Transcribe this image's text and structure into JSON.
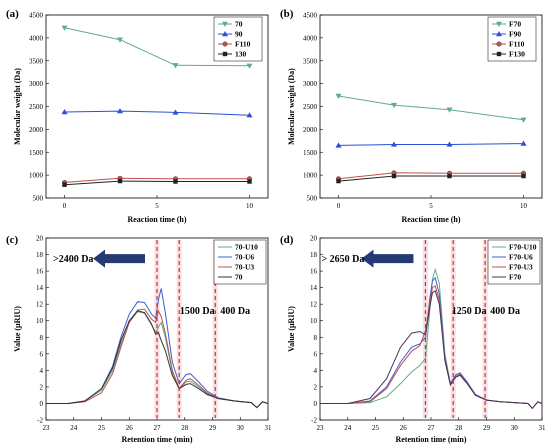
{
  "chart_data": [
    {
      "id": "a",
      "panel_label": "(a)",
      "type": "line",
      "xlabel": "Reaction time (h)",
      "ylabel": "Molecular weight (Da)",
      "xlim": [
        -1,
        11
      ],
      "ylim": [
        500,
        4500
      ],
      "xticks": [
        0,
        5,
        10
      ],
      "yticks": [
        500,
        1000,
        1500,
        2000,
        2500,
        3000,
        3500,
        4000,
        4500
      ],
      "legend_position": "top-right",
      "x": [
        0,
        3,
        6,
        10
      ],
      "series": [
        {
          "name": "70",
          "color": "#5fae86",
          "marker": "tri-down",
          "values": [
            4220,
            3960,
            3400,
            3390
          ]
        },
        {
          "name": "90",
          "color": "#2b4fd8",
          "marker": "tri-up",
          "values": [
            2380,
            2400,
            2370,
            2310
          ]
        },
        {
          "name": "F110",
          "color": "#c0504d",
          "marker": "circle",
          "values": [
            840,
            930,
            920,
            920
          ]
        },
        {
          "name": "130",
          "color": "#222222",
          "marker": "square",
          "values": [
            790,
            870,
            860,
            860
          ]
        }
      ]
    },
    {
      "id": "b",
      "panel_label": "(b)",
      "type": "line",
      "xlabel": "Reaction time (h)",
      "ylabel": "Molecular weight (Da)",
      "xlim": [
        -1,
        11
      ],
      "ylim": [
        500,
        4500
      ],
      "xticks": [
        0,
        5,
        10
      ],
      "yticks": [
        500,
        1000,
        1500,
        2000,
        2500,
        3000,
        3500,
        4000,
        4500
      ],
      "legend_position": "top-right",
      "x": [
        0,
        3,
        6,
        10
      ],
      "series": [
        {
          "name": "F70",
          "color": "#5fae86",
          "marker": "tri-down",
          "values": [
            2730,
            2530,
            2430,
            2210
          ]
        },
        {
          "name": "F90",
          "color": "#2b4fd8",
          "marker": "tri-up",
          "values": [
            1650,
            1670,
            1670,
            1690
          ]
        },
        {
          "name": "F110",
          "color": "#c0504d",
          "marker": "circle",
          "values": [
            920,
            1050,
            1040,
            1040
          ]
        },
        {
          "name": "F130",
          "color": "#222222",
          "marker": "square",
          "values": [
            870,
            980,
            980,
            980
          ]
        }
      ]
    },
    {
      "id": "c",
      "panel_label": "(c)",
      "type": "line",
      "xlabel": "Retention time (min)",
      "ylabel": "Value (μRIU)",
      "xlim": [
        23,
        31
      ],
      "ylim": [
        -2,
        20
      ],
      "xticks": [
        23,
        24,
        25,
        26,
        27,
        28,
        29,
        30,
        31
      ],
      "yticks": [
        -2,
        0,
        2,
        4,
        6,
        8,
        10,
        12,
        14,
        16,
        18,
        20
      ],
      "legend_position": "top-right",
      "series": [
        {
          "name": "70-U10",
          "color": "#5fae86",
          "points": [
            [
              23,
              0
            ],
            [
              23.8,
              0
            ],
            [
              24.4,
              0.3
            ],
            [
              25,
              1.6
            ],
            [
              25.4,
              4
            ],
            [
              25.7,
              7.2
            ],
            [
              26,
              9.8
            ],
            [
              26.3,
              11.1
            ],
            [
              26.55,
              10.9
            ],
            [
              26.8,
              9.5
            ],
            [
              26.95,
              8.6
            ],
            [
              27.05,
              9.2
            ],
            [
              27.15,
              9.8
            ],
            [
              27.3,
              8
            ],
            [
              27.55,
              3.8
            ],
            [
              27.8,
              1.8
            ],
            [
              28.05,
              2.6
            ],
            [
              28.2,
              2.7
            ],
            [
              28.5,
              2
            ],
            [
              28.8,
              1.2
            ],
            [
              29.2,
              0.6
            ],
            [
              29.8,
              0.3
            ],
            [
              30.4,
              0.1
            ],
            [
              30.6,
              -0.5
            ],
            [
              30.8,
              0.2
            ],
            [
              31,
              0
            ]
          ]
        },
        {
          "name": "70-U6",
          "color": "#3d5fd6",
          "points": [
            [
              23,
              0
            ],
            [
              23.8,
              0
            ],
            [
              24.4,
              0.3
            ],
            [
              25,
              1.8
            ],
            [
              25.4,
              4.5
            ],
            [
              25.7,
              8
            ],
            [
              26,
              10.8
            ],
            [
              26.3,
              12.3
            ],
            [
              26.55,
              12.2
            ],
            [
              26.8,
              10.8
            ],
            [
              26.95,
              10.3
            ],
            [
              27.05,
              12.5
            ],
            [
              27.15,
              13.9
            ],
            [
              27.3,
              11
            ],
            [
              27.55,
              5
            ],
            [
              27.8,
              2.4
            ],
            [
              28.05,
              3.5
            ],
            [
              28.2,
              3.6
            ],
            [
              28.5,
              2.6
            ],
            [
              28.8,
              1.5
            ],
            [
              29.2,
              0.7
            ],
            [
              29.8,
              0.3
            ],
            [
              30.4,
              0.1
            ],
            [
              30.6,
              -0.5
            ],
            [
              30.8,
              0.2
            ],
            [
              31,
              0
            ]
          ]
        },
        {
          "name": "70-U3",
          "color": "#c0504d",
          "points": [
            [
              23,
              0
            ],
            [
              23.8,
              0
            ],
            [
              24.4,
              0.2
            ],
            [
              25,
              1.3
            ],
            [
              25.4,
              3.6
            ],
            [
              25.7,
              6.8
            ],
            [
              26,
              9.8
            ],
            [
              26.3,
              11.3
            ],
            [
              26.55,
              11.4
            ],
            [
              26.8,
              10.2
            ],
            [
              26.95,
              9.8
            ],
            [
              27.05,
              11.2
            ],
            [
              27.15,
              10.5
            ],
            [
              27.3,
              8.5
            ],
            [
              27.55,
              4
            ],
            [
              27.8,
              1.8
            ],
            [
              28.05,
              2.8
            ],
            [
              28.2,
              3
            ],
            [
              28.5,
              2.2
            ],
            [
              28.8,
              1.3
            ],
            [
              29.2,
              0.6
            ],
            [
              29.8,
              0.3
            ],
            [
              30.4,
              0.1
            ],
            [
              30.6,
              -0.5
            ],
            [
              30.8,
              0.2
            ],
            [
              31,
              0
            ]
          ]
        },
        {
          "name": "70",
          "color": "#333333",
          "points": [
            [
              23,
              0
            ],
            [
              23.8,
              0
            ],
            [
              24.4,
              0.3
            ],
            [
              25,
              1.8
            ],
            [
              25.4,
              4.3
            ],
            [
              25.7,
              7.6
            ],
            [
              26,
              10
            ],
            [
              26.3,
              11.2
            ],
            [
              26.55,
              11
            ],
            [
              26.8,
              9.6
            ],
            [
              26.95,
              8.4
            ],
            [
              27.05,
              8.6
            ],
            [
              27.15,
              7.6
            ],
            [
              27.3,
              6.4
            ],
            [
              27.55,
              3.4
            ],
            [
              27.8,
              1.8
            ],
            [
              28.05,
              2.3
            ],
            [
              28.2,
              2.4
            ],
            [
              28.5,
              1.8
            ],
            [
              28.8,
              1.1
            ],
            [
              29.2,
              0.6
            ],
            [
              29.8,
              0.3
            ],
            [
              30.4,
              0.1
            ],
            [
              30.6,
              -0.5
            ],
            [
              30.8,
              0.2
            ],
            [
              31,
              0
            ]
          ]
        }
      ],
      "vlines": [
        {
          "x": 27.0,
          "label": ""
        },
        {
          "x": 27.8,
          "label": "1500 Da"
        },
        {
          "x": 29.1,
          "label": "400 Da"
        }
      ],
      "arrow_label": ">2400 Da"
    },
    {
      "id": "d",
      "panel_label": "(d)",
      "type": "line",
      "xlabel": "Retention time (min)",
      "ylabel": "Value (μRIU)",
      "xlim": [
        23,
        31
      ],
      "ylim": [
        -2,
        20
      ],
      "xticks": [
        23,
        24,
        25,
        26,
        27,
        28,
        29,
        30,
        31
      ],
      "yticks": [
        -2,
        0,
        2,
        4,
        6,
        8,
        10,
        12,
        14,
        16,
        18,
        20
      ],
      "legend_position": "top-right",
      "series": [
        {
          "name": "F70-U10",
          "color": "#5fae86",
          "points": [
            [
              23,
              0
            ],
            [
              24,
              0
            ],
            [
              24.8,
              0.1
            ],
            [
              25.4,
              0.8
            ],
            [
              25.9,
              2.4
            ],
            [
              26.3,
              3.8
            ],
            [
              26.6,
              4.6
            ],
            [
              26.8,
              5.5
            ],
            [
              26.95,
              11
            ],
            [
              27.05,
              15
            ],
            [
              27.15,
              16.2
            ],
            [
              27.3,
              14.5
            ],
            [
              27.5,
              6
            ],
            [
              27.7,
              2.4
            ],
            [
              27.9,
              3.3
            ],
            [
              28.05,
              3.6
            ],
            [
              28.3,
              2.6
            ],
            [
              28.6,
              1
            ],
            [
              29,
              0.4
            ],
            [
              29.5,
              0.2
            ],
            [
              30,
              0.1
            ],
            [
              30.5,
              0
            ],
            [
              30.65,
              -0.6
            ],
            [
              30.85,
              0.2
            ],
            [
              31,
              0
            ]
          ]
        },
        {
          "name": "F70-U6",
          "color": "#3d5fd6",
          "points": [
            [
              23,
              0
            ],
            [
              24,
              0
            ],
            [
              24.8,
              0.3
            ],
            [
              25.4,
              2
            ],
            [
              25.9,
              5
            ],
            [
              26.3,
              6.8
            ],
            [
              26.6,
              7.2
            ],
            [
              26.8,
              8
            ],
            [
              26.95,
              12.5
            ],
            [
              27.05,
              14.8
            ],
            [
              27.15,
              15.2
            ],
            [
              27.3,
              13.2
            ],
            [
              27.5,
              5.5
            ],
            [
              27.7,
              2.4
            ],
            [
              27.9,
              3.5
            ],
            [
              28.05,
              3.7
            ],
            [
              28.3,
              2.6
            ],
            [
              28.6,
              1.1
            ],
            [
              29,
              0.4
            ],
            [
              29.5,
              0.2
            ],
            [
              30,
              0.1
            ],
            [
              30.5,
              0
            ],
            [
              30.65,
              -0.6
            ],
            [
              30.85,
              0.2
            ],
            [
              31,
              0
            ]
          ]
        },
        {
          "name": "F70-U3",
          "color": "#c0504d",
          "points": [
            [
              23,
              0
            ],
            [
              24,
              0
            ],
            [
              24.8,
              0.2
            ],
            [
              25.4,
              1.8
            ],
            [
              25.9,
              4.6
            ],
            [
              26.3,
              6.3
            ],
            [
              26.6,
              7
            ],
            [
              26.8,
              8.8
            ],
            [
              26.95,
              12
            ],
            [
              27.05,
              14
            ],
            [
              27.15,
              14.2
            ],
            [
              27.3,
              12.5
            ],
            [
              27.5,
              5.2
            ],
            [
              27.7,
              2.2
            ],
            [
              27.9,
              3.3
            ],
            [
              28.05,
              3.5
            ],
            [
              28.3,
              2.5
            ],
            [
              28.6,
              1
            ],
            [
              29,
              0.4
            ],
            [
              29.5,
              0.2
            ],
            [
              30,
              0.1
            ],
            [
              30.5,
              0
            ],
            [
              30.65,
              -0.6
            ],
            [
              30.85,
              0.2
            ],
            [
              31,
              0
            ]
          ]
        },
        {
          "name": "F70",
          "color": "#4a3355",
          "points": [
            [
              23,
              0
            ],
            [
              24,
              0
            ],
            [
              24.8,
              0.6
            ],
            [
              25.4,
              3
            ],
            [
              25.9,
              6.8
            ],
            [
              26.3,
              8.5
            ],
            [
              26.6,
              8.7
            ],
            [
              26.8,
              8.3
            ],
            [
              26.95,
              11.5
            ],
            [
              27.05,
              13.4
            ],
            [
              27.15,
              13.6
            ],
            [
              27.3,
              12
            ],
            [
              27.5,
              5.2
            ],
            [
              27.7,
              2.3
            ],
            [
              27.9,
              3.2
            ],
            [
              28.05,
              3.4
            ],
            [
              28.3,
              2.4
            ],
            [
              28.6,
              1
            ],
            [
              29,
              0.4
            ],
            [
              29.5,
              0.2
            ],
            [
              30,
              0.1
            ],
            [
              30.5,
              0
            ],
            [
              30.65,
              -0.6
            ],
            [
              30.85,
              0.2
            ],
            [
              31,
              0
            ]
          ]
        }
      ],
      "vlines": [
        {
          "x": 26.8,
          "label": ""
        },
        {
          "x": 27.8,
          "label": "1250 Da"
        },
        {
          "x": 28.95,
          "label": "400 Da"
        }
      ],
      "arrow_label": "> 2650 Da"
    }
  ],
  "colors": {
    "arrow": "#243a73",
    "vline": "#c0392b",
    "vline_shade": "#f5c6cf"
  }
}
